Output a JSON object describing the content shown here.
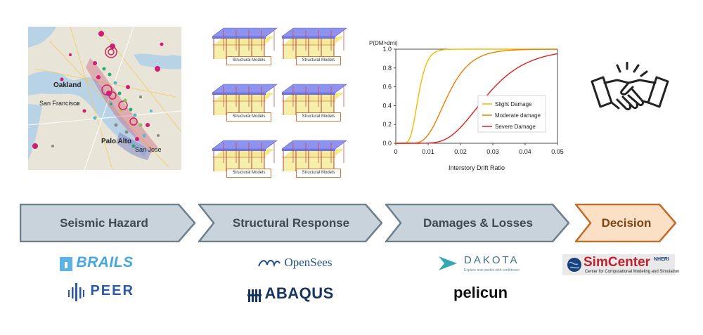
{
  "map": {
    "labels": [
      "Oakland",
      "San Francisco",
      "Palo Alto",
      "San Jose"
    ]
  },
  "models": {
    "label": "Structural Models",
    "count": 6
  },
  "fragility": {
    "ylabel": "P(DM>dmi)",
    "xlabel": "Interstory Drift Ratio",
    "xticks": [
      "0",
      "0.01",
      "0.02",
      "0.03",
      "0.04",
      "0.05"
    ],
    "yticks": [
      "0.0",
      "0.2",
      "0.4",
      "0.6",
      "0.8",
      "1.0"
    ],
    "legend": [
      "Slight Damage",
      "Moderate damage",
      "Severe Damage"
    ]
  },
  "chart_data": {
    "type": "line",
    "title": "",
    "xlabel": "Interstory Drift Ratio",
    "ylabel": "P(DM>dmi)",
    "xlim": [
      0,
      0.05
    ],
    "ylim": [
      0,
      1.0
    ],
    "legend_position": "lower-right",
    "grid": false,
    "series": [
      {
        "name": "Slight Damage",
        "color": "#f5b800",
        "median": 0.007,
        "beta": 0.3
      },
      {
        "name": "Moderate damage",
        "color": "#f07d00",
        "median": 0.016,
        "beta": 0.35
      },
      {
        "name": "Severe Damage",
        "color": "#e02020",
        "median": 0.028,
        "beta": 0.35
      }
    ]
  },
  "pipeline": {
    "steps": [
      {
        "label": "Seismic Hazard",
        "fill": "#c9d3dc",
        "stroke": "#6b7f8c",
        "text_color": "#3d4a52"
      },
      {
        "label": "Structural Response",
        "fill": "#c9d3dc",
        "stroke": "#6b7f8c",
        "text_color": "#3d4a52"
      },
      {
        "label": "Damages & Losses",
        "fill": "#c9d3dc",
        "stroke": "#6b7f8c",
        "text_color": "#3d4a52"
      },
      {
        "label": "Decision",
        "fill": "#fbe0c6",
        "stroke": "#c46a26",
        "text_color": "#7a4512"
      }
    ]
  },
  "logos": {
    "brails": "BRAILS",
    "peer": "PEER",
    "opensees": "OpenSees",
    "abaqus": "ABAQUS",
    "dakota": "DAKOTA",
    "dakota_tagline": "Explore and predict with confidence",
    "pelicun": "pelicun",
    "simcenter": "SimCenter",
    "simcenter_badge": "NHERI",
    "simcenter_tagline": "Center for Computational Modeling and Simulation"
  },
  "icons": {
    "handshake": "handshake-icon"
  }
}
